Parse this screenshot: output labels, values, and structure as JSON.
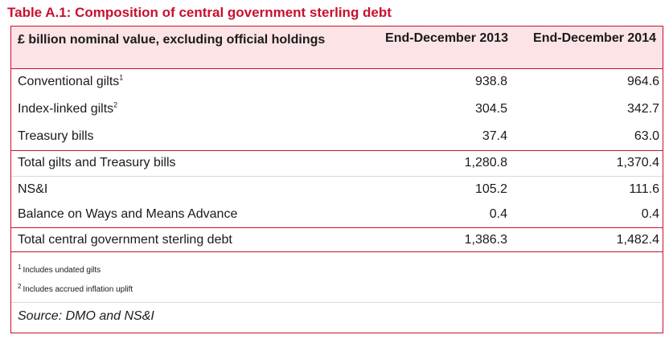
{
  "title": "Table A.1: Composition of central government sterling debt",
  "table": {
    "header": {
      "label": "£ billion nominal value, excluding official holdings",
      "col1": "End-December 2013",
      "col2": "End-December 2014"
    },
    "rows": [
      {
        "label": "Conventional gilts",
        "sup": "1",
        "v2013": "938.8",
        "v2014": "964.6",
        "total": false
      },
      {
        "label": "Index-linked gilts",
        "sup": "2",
        "v2013": "304.5",
        "v2014": "342.7",
        "total": false
      },
      {
        "label": "Treasury bills",
        "sup": "",
        "v2013": "37.4",
        "v2014": "63.0",
        "total": false
      },
      {
        "label": "Total gilts and Treasury bills",
        "sup": "",
        "v2013": "1,280.8",
        "v2014": "1,370.4",
        "total": true
      },
      {
        "label": "NS&I",
        "sup": "",
        "v2013": "105.2",
        "v2014": "111.6",
        "total": false
      },
      {
        "label": "Balance on Ways and Means Advance",
        "sup": "",
        "v2013": "0.4",
        "v2014": "0.4",
        "total": false
      },
      {
        "label": "Total central government sterling debt",
        "sup": "",
        "v2013": "1,386.3",
        "v2014": "1,482.4",
        "total": true
      }
    ],
    "notes": [
      {
        "marker": "1",
        "text": "Includes undated gilts"
      },
      {
        "marker": "2",
        "text": "Includes accrued inflation uplift"
      }
    ],
    "source": "Source: DMO and NS&I"
  }
}
